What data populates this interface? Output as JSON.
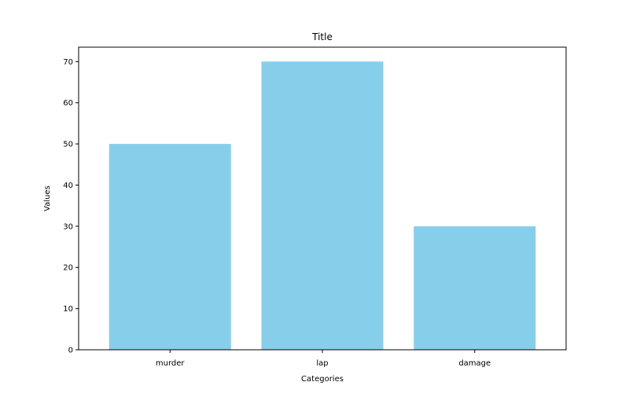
{
  "chart_data": {
    "type": "bar",
    "title": "Title",
    "xlabel": "Categories",
    "ylabel": "Values",
    "categories": [
      "murder",
      "lap",
      "damage"
    ],
    "values": [
      50,
      70,
      30
    ],
    "ylim": [
      0,
      73.5
    ],
    "yticks": [
      0,
      10,
      20,
      30,
      40,
      50,
      60,
      70
    ],
    "bar_color": "#87CEEB",
    "grid": false,
    "legend": "none"
  }
}
